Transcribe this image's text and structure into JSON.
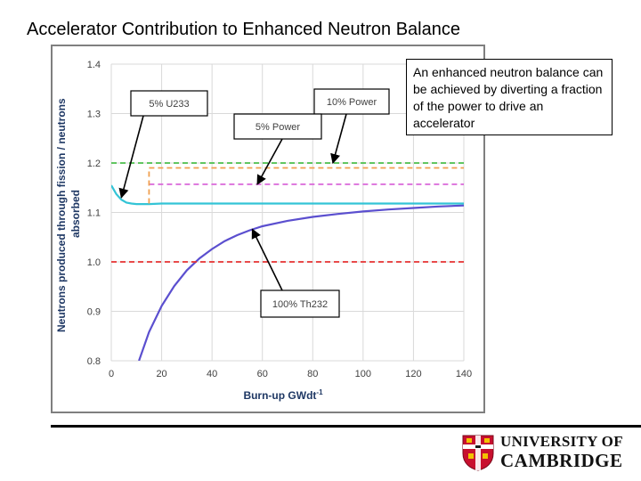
{
  "slide": {
    "title": "Accelerator Contribution to Enhanced Neutron Balance"
  },
  "callout": {
    "text": "An enhanced neutron balance can be achieved by diverting a fraction of the power to drive an accelerator"
  },
  "logo": {
    "line1": "UNIVERSITY OF",
    "line2": "CAMBRIDGE"
  },
  "chart_data": {
    "type": "line",
    "xlabel": "Burn-up GWdt",
    "xlabel_sup": "-1",
    "ylabel_line1": "Neutrons produced through fission / neutrons",
    "ylabel_line2": "absorbed",
    "xlim": [
      0,
      140
    ],
    "ylim": [
      0.8,
      1.4
    ],
    "xticks": [
      "0",
      "20",
      "40",
      "60",
      "80",
      "100",
      "120",
      "140"
    ],
    "yticks": [
      "0.8",
      "0.9",
      "1.0",
      "1.1",
      "1.2",
      "1.3",
      "1.4"
    ],
    "grid": true,
    "series": [
      {
        "label": "100% Th232",
        "color": "#5b4fcf",
        "style": "solid",
        "x": [
          11,
          15,
          20,
          25,
          30,
          35,
          40,
          45,
          50,
          55,
          60,
          70,
          80,
          90,
          100,
          110,
          120,
          130,
          140
        ],
        "y": [
          0.8,
          0.858,
          0.911,
          0.951,
          0.983,
          1.007,
          1.026,
          1.042,
          1.054,
          1.064,
          1.072,
          1.083,
          1.091,
          1.097,
          1.102,
          1.106,
          1.109,
          1.112,
          1.114
        ]
      },
      {
        "label": "5% U233",
        "color": "#33c4d6",
        "style": "solid",
        "x": [
          0,
          2,
          4,
          6,
          8,
          10,
          15,
          20,
          40,
          60,
          80,
          100,
          120,
          140
        ],
        "y": [
          1.155,
          1.137,
          1.126,
          1.12,
          1.118,
          1.117,
          1.117,
          1.118,
          1.118,
          1.118,
          1.118,
          1.118,
          1.118,
          1.118
        ]
      },
      {
        "label": "5% Power",
        "color": "#d966d9",
        "style": "dashed",
        "x": [
          15,
          140
        ],
        "y": [
          1.157,
          1.157
        ]
      },
      {
        "label": "10% Power",
        "color": "#4bbf4b",
        "style": "dashed",
        "x": [
          0,
          140
        ],
        "y": [
          1.2,
          1.2
        ]
      },
      {
        "label": "",
        "color": "#e53030",
        "style": "dashed",
        "x": [
          0,
          140
        ],
        "y": [
          1.0,
          1.0
        ]
      },
      {
        "label": "",
        "color": "#f0a050",
        "style": "dashed",
        "x": [
          15,
          15,
          140
        ],
        "y": [
          1.118,
          1.19,
          1.19
        ]
      }
    ],
    "annotations": [
      {
        "text": "5% U233",
        "target": [
          4,
          1.13
        ]
      },
      {
        "text": "10% Power",
        "target": [
          88,
          1.2
        ]
      },
      {
        "text": "5% Power",
        "target": [
          58,
          1.157
        ]
      },
      {
        "text": "100% Th232",
        "target": [
          56,
          1.066
        ]
      }
    ]
  }
}
